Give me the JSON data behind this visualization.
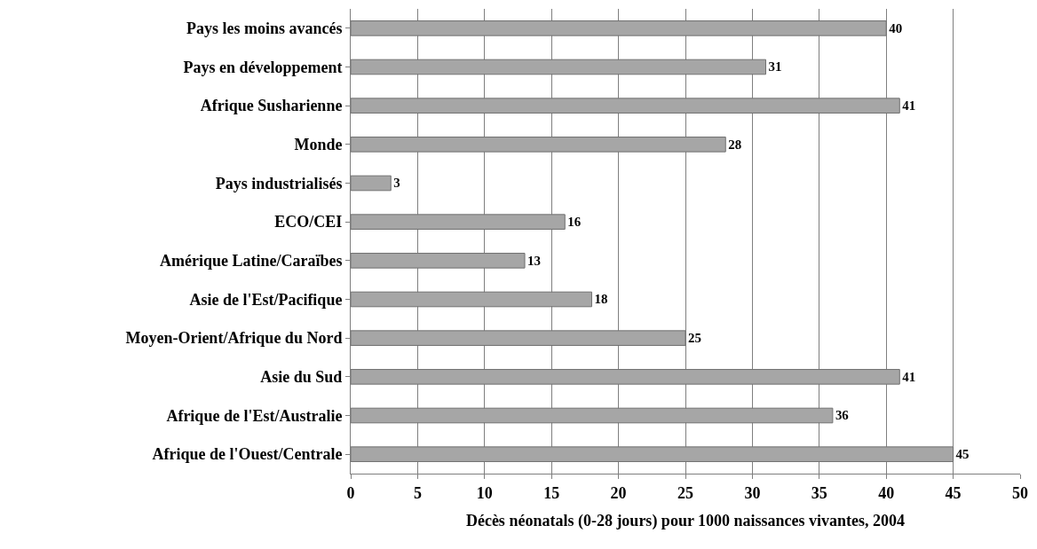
{
  "chart_data": {
    "type": "bar",
    "orientation": "horizontal",
    "xlabel": "Décès néonatals (0-28 jours) pour 1000 naissances vivantes, 2004",
    "categories": [
      "Pays les moins avancés",
      "Pays en développement",
      "Afrique Susharienne",
      "Monde",
      "Pays industrialisés",
      "ECO/CEI",
      "Amérique Latine/Caraïbes",
      "Asie de l'Est/Pacifique",
      "Moyen-Orient/Afrique du Nord",
      "Asie du Sud",
      "Afrique de l'Est/Australie",
      "Afrique de l'Ouest/Centrale"
    ],
    "values": [
      40,
      31,
      41,
      28,
      3,
      16,
      13,
      18,
      25,
      41,
      36,
      45
    ],
    "color": "#a6a6a6",
    "xlim": [
      0,
      50
    ],
    "xticks": [
      0,
      5,
      10,
      15,
      20,
      25,
      30,
      35,
      40,
      45,
      50
    ],
    "grid": "x",
    "data_labels": true
  }
}
